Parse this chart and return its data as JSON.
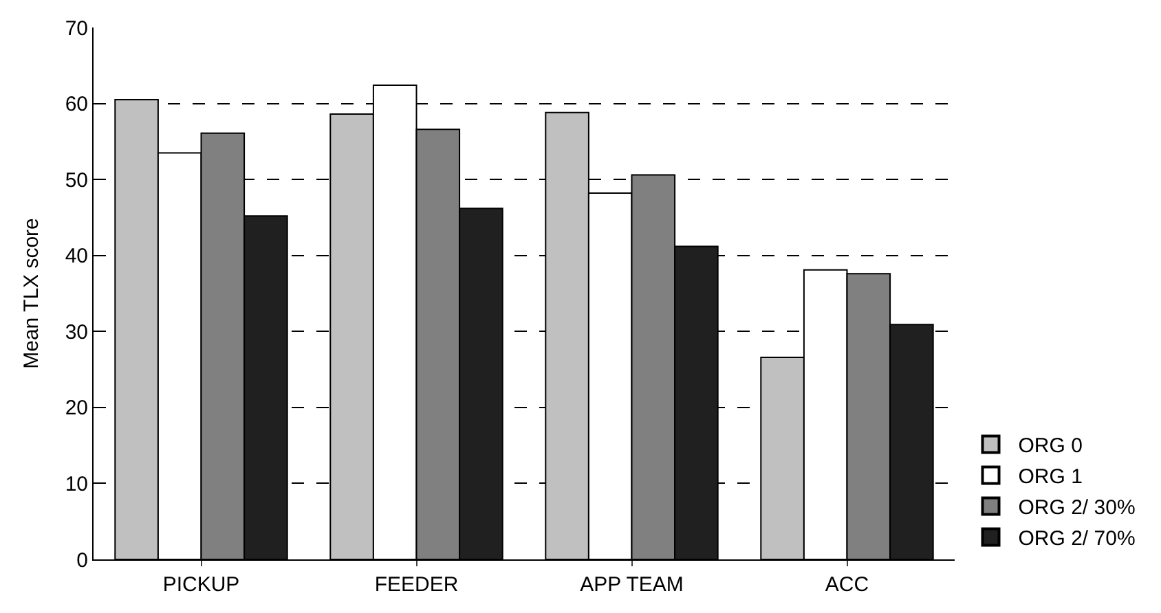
{
  "chart_data": {
    "type": "bar",
    "ylabel": "Mean TLX score",
    "categories": [
      "PICKUP",
      "FEEDER",
      "APP TEAM",
      "ACC"
    ],
    "series": [
      {
        "name": "ORG 0",
        "color": "#c0c0c0",
        "values": [
          60.5,
          58.6,
          58.8,
          26.6
        ]
      },
      {
        "name": "ORG 1",
        "color": "#ffffff",
        "values": [
          53.5,
          62.4,
          48.2,
          38.1
        ]
      },
      {
        "name": "ORG 2/ 30%",
        "color": "#808080",
        "values": [
          56.1,
          56.6,
          50.6,
          37.6
        ]
      },
      {
        "name": "ORG 2/ 70%",
        "color": "#202020",
        "values": [
          45.2,
          46.2,
          41.2,
          30.9
        ]
      }
    ],
    "ylim": [
      0,
      70
    ],
    "yticks": [
      0,
      10,
      20,
      30,
      40,
      50,
      60,
      70
    ],
    "grid": "y",
    "legend": "bottom right"
  }
}
